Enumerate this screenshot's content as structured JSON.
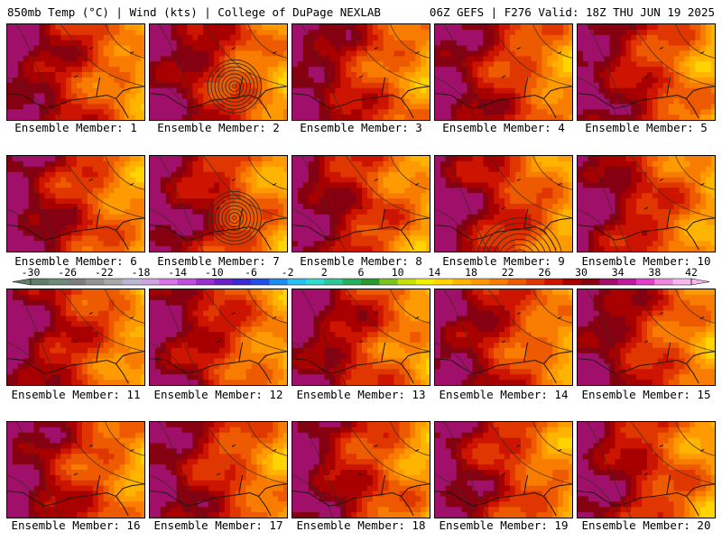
{
  "header": {
    "left_title": "850mb Temp (°C) | Wind (kts) | College of DuPage NEXLAB",
    "right_title": "06Z GEFS | F276 Valid: 18Z THU JUN 19 2025"
  },
  "member_label_prefix": "Ensemble Member:",
  "members": [
    {
      "number": "1",
      "label": "Ensemble Member: 1",
      "feature": "none"
    },
    {
      "number": "2",
      "label": "Ensemble Member: 2",
      "feature": "cyclone"
    },
    {
      "number": "3",
      "label": "Ensemble Member: 3",
      "feature": "none"
    },
    {
      "number": "4",
      "label": "Ensemble Member: 4",
      "feature": "none"
    },
    {
      "number": "5",
      "label": "Ensemble Member: 5",
      "feature": "none"
    },
    {
      "number": "6",
      "label": "Ensemble Member: 6",
      "feature": "none"
    },
    {
      "number": "7",
      "label": "Ensemble Member: 7",
      "feature": "cyclone"
    },
    {
      "number": "8",
      "label": "Ensemble Member: 8",
      "feature": "none"
    },
    {
      "number": "9",
      "label": "Ensemble Member: 9",
      "feature": "low-south"
    },
    {
      "number": "10",
      "label": "Ensemble Member: 10",
      "feature": "none"
    },
    {
      "number": "11",
      "label": "Ensemble Member: 11",
      "feature": "none"
    },
    {
      "number": "12",
      "label": "Ensemble Member: 12",
      "feature": "none"
    },
    {
      "number": "13",
      "label": "Ensemble Member: 13",
      "feature": "none"
    },
    {
      "number": "14",
      "label": "Ensemble Member: 14",
      "feature": "none"
    },
    {
      "number": "15",
      "label": "Ensemble Member: 15",
      "feature": "none"
    },
    {
      "number": "16",
      "label": "Ensemble Member: 16",
      "feature": "none"
    },
    {
      "number": "17",
      "label": "Ensemble Member: 17",
      "feature": "none"
    },
    {
      "number": "18",
      "label": "Ensemble Member: 18",
      "feature": "none"
    },
    {
      "number": "19",
      "label": "Ensemble Member: 19",
      "feature": "none"
    },
    {
      "number": "20",
      "label": "Ensemble Member: 20",
      "feature": "none"
    }
  ],
  "colorbar": {
    "units": "°C",
    "tick_labels": [
      "-30",
      "-26",
      "-22",
      "-18",
      "-14",
      "-10",
      "-6",
      "-2",
      "2",
      "6",
      "10",
      "14",
      "18",
      "22",
      "26",
      "30",
      "34",
      "38",
      "42"
    ],
    "colors": [
      "#5f7f6a",
      "#6f8c78",
      "#7d7d7d",
      "#939393",
      "#a9a9a9",
      "#b9b9d6",
      "#cfa2e0",
      "#d873ec",
      "#c24ee0",
      "#9a2fd0",
      "#6a22c8",
      "#3a2ad0",
      "#2250e6",
      "#1f8af0",
      "#25c2f0",
      "#2fdcd0",
      "#2cc89a",
      "#22b060",
      "#2a9a2e",
      "#7cc41c",
      "#c6e00c",
      "#f0f000",
      "#ffd400",
      "#ffb400",
      "#ff9a00",
      "#f87c00",
      "#ee5a00",
      "#e03600",
      "#cc1400",
      "#a80000",
      "#850010",
      "#a0106a",
      "#c01aa0",
      "#e040d0",
      "#f088e0",
      "#f4b8ee"
    ]
  },
  "colors": {
    "contour": "#3a2a20",
    "coast": "#1e140c"
  }
}
